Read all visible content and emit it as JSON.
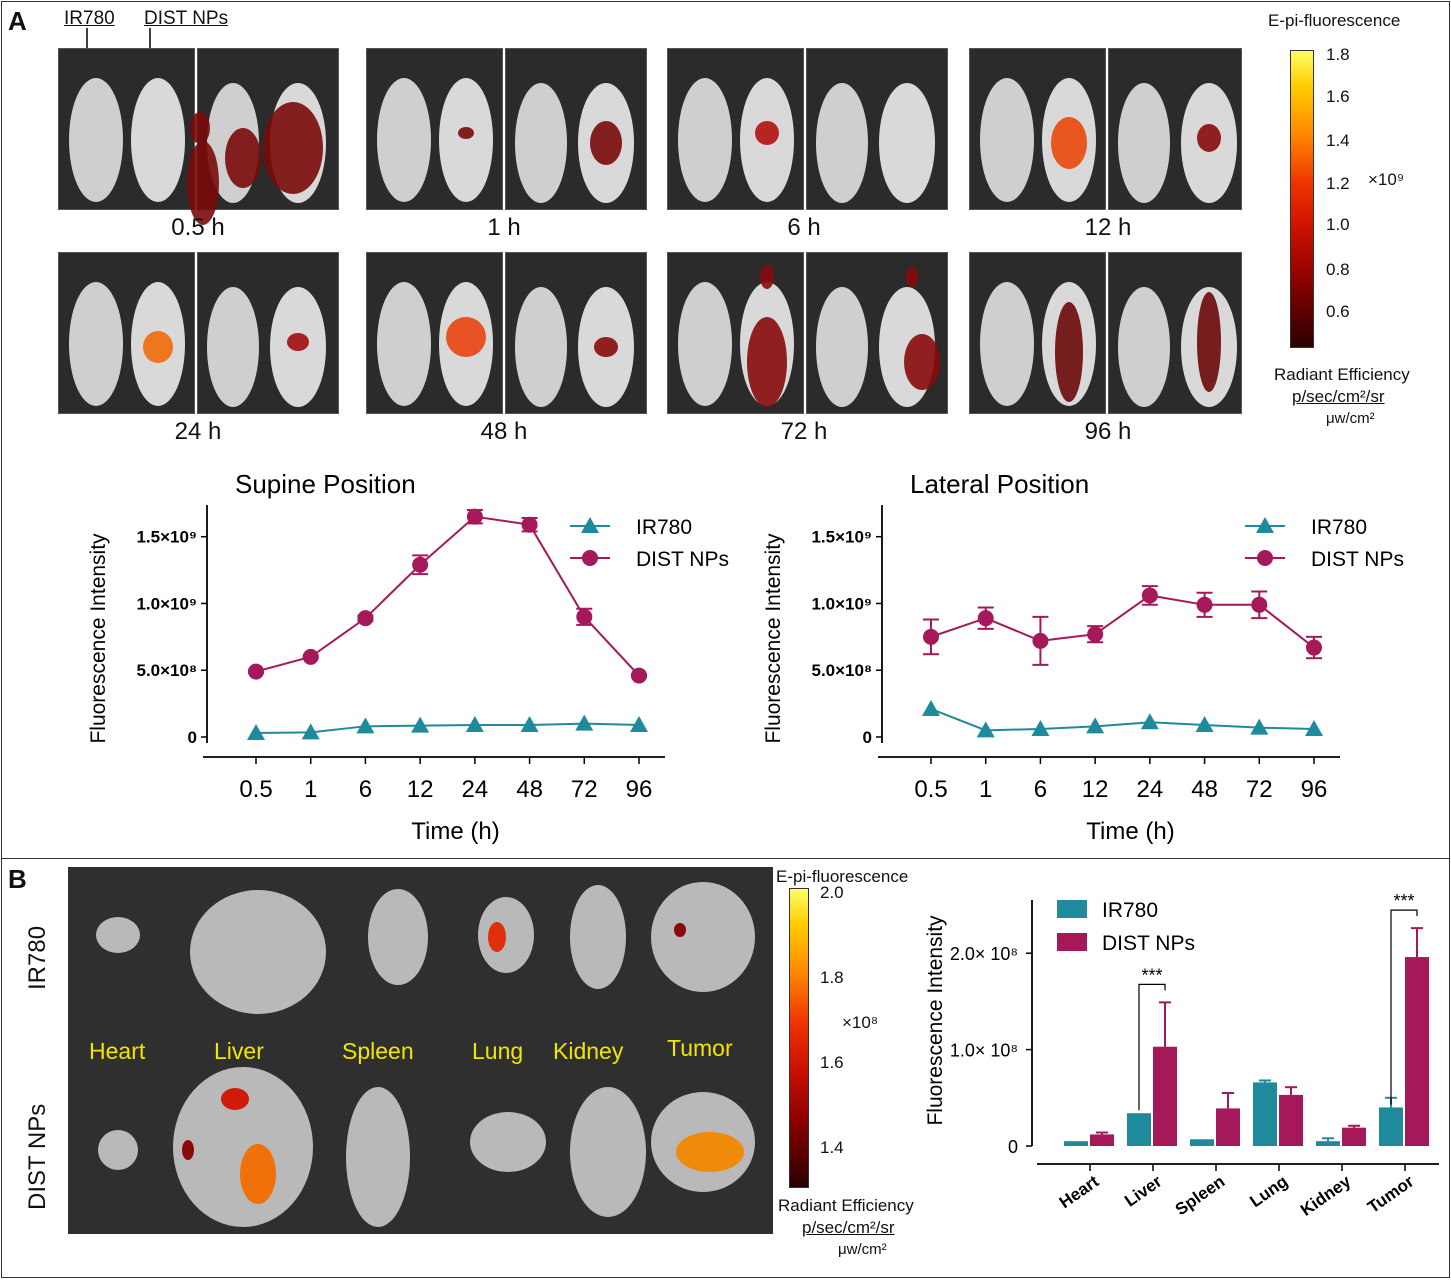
{
  "panelA": {
    "letter": "A",
    "arrow_labels": [
      "IR780",
      "DIST NPs"
    ],
    "timepoints": [
      "0.5 h",
      "1 h",
      "6 h",
      "12 h",
      "24 h",
      "48 h",
      "72 h",
      "96 h"
    ],
    "colorbar": {
      "title": "E-pi-fluorescence",
      "ticks": [
        "1.8",
        "1.6",
        "1.4",
        "1.2",
        "1.0",
        "0.8",
        "0.6"
      ],
      "multiplier": "×10⁹",
      "unit_line1": "Radiant Efficiency",
      "unit_line2": "p/sec/cm²/sr",
      "unit_line3": "μw/cm²"
    }
  },
  "panelB": {
    "letter": "B",
    "row_labels": [
      "IR780",
      "DIST NPs"
    ],
    "organ_labels": [
      "Heart",
      "Liver",
      "Spleen",
      "Lung",
      "Kidney",
      "Tumor"
    ],
    "colorbar": {
      "title": "E-pi-fluorescence",
      "ticks": [
        "2.0",
        "1.8",
        "1.6",
        "1.4"
      ],
      "multiplier": "×10⁸",
      "unit_line1": "Radiant Efficiency",
      "unit_line2": "p/sec/cm²/sr",
      "unit_line3": "μw/cm²"
    }
  },
  "colors": {
    "ir780": "#1f8a9c",
    "dist": "#a5195b"
  },
  "chart_data": [
    {
      "type": "line",
      "title": "Supine Position",
      "xlabel": "Time (h)",
      "ylabel": "Fluorescence Intensity",
      "categories": [
        "0.5",
        "1",
        "6",
        "12",
        "24",
        "48",
        "72",
        "96"
      ],
      "yticks": [
        "0",
        "5.0×10⁸",
        "1.0×10⁹",
        "1.5×10⁹"
      ],
      "ylim": [
        0,
        1700000000
      ],
      "series": [
        {
          "name": "IR780",
          "marker": "triangle",
          "values": [
            30000000,
            35000000,
            80000000,
            85000000,
            90000000,
            90000000,
            100000000,
            90000000
          ],
          "errors": [
            0,
            0,
            0,
            0,
            0,
            0,
            0,
            0
          ]
        },
        {
          "name": "DIST NPs",
          "marker": "circle",
          "values": [
            490000000,
            600000000,
            890000000,
            1290000000,
            1650000000,
            1590000000,
            900000000,
            460000000
          ],
          "errors": [
            10000000,
            10000000,
            20000000,
            70000000,
            50000000,
            50000000,
            60000000,
            10000000
          ]
        }
      ]
    },
    {
      "type": "line",
      "title": "Lateral Position",
      "xlabel": "Time (h)",
      "ylabel": "Fluorescence Intensity",
      "categories": [
        "0.5",
        "1",
        "6",
        "12",
        "24",
        "48",
        "72",
        "96"
      ],
      "yticks": [
        "0",
        "5.0×10⁸",
        "1.0×10⁹",
        "1.5×10⁹"
      ],
      "ylim": [
        0,
        1700000000
      ],
      "series": [
        {
          "name": "IR780",
          "marker": "triangle",
          "values": [
            210000000,
            50000000,
            60000000,
            80000000,
            110000000,
            90000000,
            70000000,
            60000000
          ],
          "errors": [
            0,
            0,
            0,
            0,
            0,
            0,
            0,
            0
          ]
        },
        {
          "name": "DIST NPs",
          "marker": "circle",
          "values": [
            750000000,
            890000000,
            720000000,
            770000000,
            1060000000,
            990000000,
            990000000,
            670000000
          ],
          "errors": [
            130000000,
            80000000,
            180000000,
            60000000,
            70000000,
            90000000,
            100000000,
            80000000
          ]
        }
      ]
    },
    {
      "type": "bar",
      "title": "",
      "xlabel": "",
      "ylabel": "Fluorescence Intensity",
      "categories": [
        "Heart",
        "Liver",
        "Spleen",
        "Lung",
        "Kidney",
        "Tumor"
      ],
      "yticks": [
        "0",
        "1.0× 10⁸",
        "2.0× 10⁸"
      ],
      "ylim": [
        0,
        250000000
      ],
      "series": [
        {
          "name": "IR780",
          "values": [
            5000000,
            34000000,
            7000000,
            66000000,
            5000000,
            40000000
          ],
          "errors": [
            0,
            0,
            0,
            2000000,
            3000000,
            10000000
          ]
        },
        {
          "name": "DIST NPs",
          "values": [
            12000000,
            103000000,
            39000000,
            53000000,
            19000000,
            196000000
          ],
          "errors": [
            2000000,
            46000000,
            16000000,
            8000000,
            2000000,
            30000000
          ]
        }
      ],
      "annotations": [
        {
          "text": "***",
          "category": "Liver"
        },
        {
          "text": "***",
          "category": "Tumor"
        }
      ]
    }
  ]
}
